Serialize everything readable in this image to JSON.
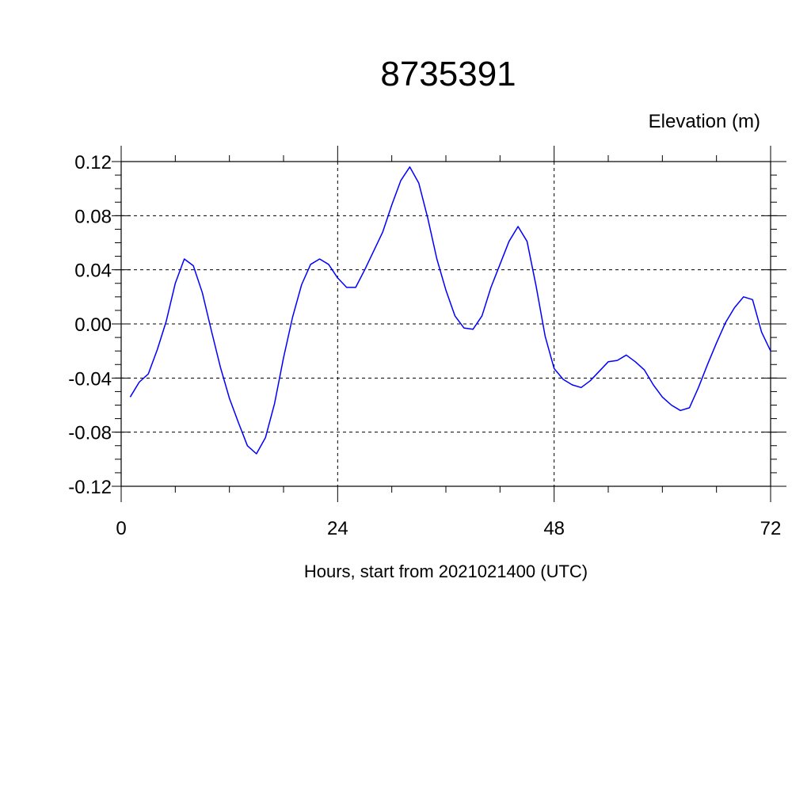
{
  "chart_data": {
    "type": "line",
    "title": "8735391",
    "subtitle": "Elevation (m)",
    "xlabel": "Hours, start from 2021021400 (UTC)",
    "ylabel": "",
    "xlim": [
      0,
      72
    ],
    "ylim": [
      -0.12,
      0.12
    ],
    "xticks": [
      "0",
      "24",
      "48",
      "72"
    ],
    "xtick_values": [
      0,
      24,
      48,
      72
    ],
    "yticks": [
      "0.12",
      "0.08",
      "0.04",
      "0.00",
      "-0.04",
      "-0.08",
      "-0.12"
    ],
    "ytick_values": [
      0.12,
      0.08,
      0.04,
      0.0,
      -0.04,
      -0.08,
      -0.12
    ],
    "grid": true,
    "colors": {
      "line": "#0000ff"
    },
    "series": [
      {
        "x": [
          1,
          2,
          3,
          4,
          5,
          6,
          7,
          8,
          9,
          10,
          11,
          12,
          13,
          14,
          15,
          16,
          17,
          18,
          19,
          20,
          21,
          22,
          23,
          24,
          25,
          26,
          27,
          28,
          29,
          30,
          31,
          32,
          33,
          34,
          35,
          36,
          37,
          38,
          39,
          40,
          41,
          42,
          43,
          44,
          45,
          46,
          47,
          48,
          49,
          50,
          51,
          52,
          53,
          54,
          55,
          56,
          57,
          58,
          59,
          60,
          61,
          62,
          63,
          64,
          65,
          66,
          67,
          68,
          69,
          70,
          71,
          72
        ],
        "values": [
          -0.054,
          -0.043,
          -0.037,
          -0.019,
          0.002,
          0.03,
          0.048,
          0.043,
          0.023,
          -0.005,
          -0.032,
          -0.055,
          -0.073,
          -0.09,
          -0.096,
          -0.084,
          -0.059,
          -0.025,
          0.005,
          0.029,
          0.044,
          0.048,
          0.044,
          0.034,
          0.027,
          0.027,
          0.04,
          0.054,
          0.068,
          0.088,
          0.106,
          0.116,
          0.104,
          0.078,
          0.048,
          0.025,
          0.006,
          -0.003,
          -0.004,
          0.006,
          0.027,
          0.044,
          0.061,
          0.072,
          0.061,
          0.028,
          -0.009,
          -0.033,
          -0.041,
          -0.045,
          -0.047,
          -0.042,
          -0.035,
          -0.028,
          -0.027,
          -0.023,
          -0.028,
          -0.034,
          -0.045,
          -0.054,
          -0.06,
          -0.064,
          -0.062,
          -0.047,
          -0.03,
          -0.014,
          0.001,
          0.012,
          0.02,
          0.018,
          -0.006,
          -0.02
        ]
      }
    ]
  }
}
